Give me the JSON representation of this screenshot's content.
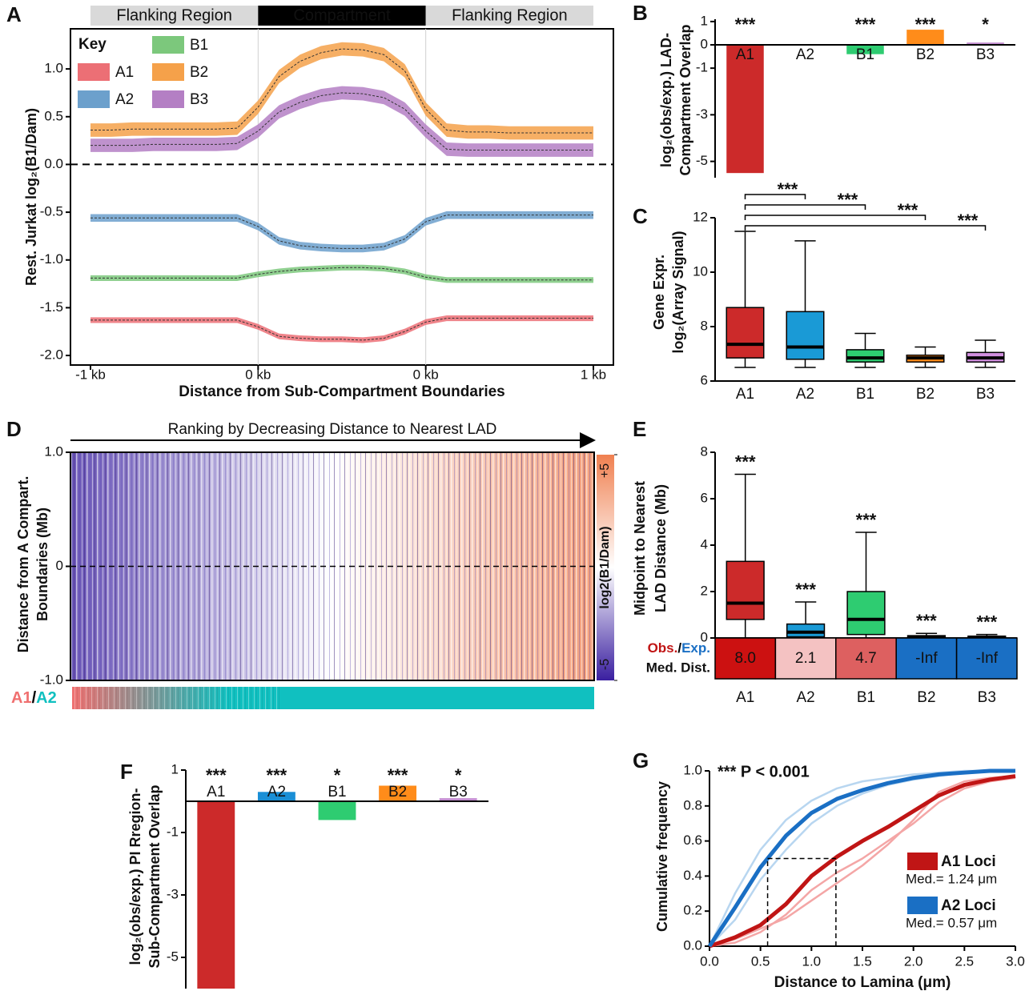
{
  "chart_data": [
    {
      "panel": "A",
      "type": "line",
      "header": [
        "Flanking Region",
        "Compartment",
        "Flanking Region"
      ],
      "legend_title": "Key",
      "xlabel": "Distance from Sub-Compartment Boundaries",
      "ylabel": "Rest. Jurkat log₂(B1/Dam)",
      "x": [
        0,
        0.125,
        0.25,
        0.375,
        0.5,
        0.625,
        0.75,
        0.875,
        1,
        1.125,
        1.25,
        1.375,
        1.5,
        1.625,
        1.75,
        1.875,
        2,
        2.125,
        2.25,
        2.375,
        2.5,
        2.625,
        2.75,
        2.875,
        3
      ],
      "xlim": [
        0,
        3
      ],
      "xticks": [
        {
          "value": 0,
          "label": "-1 kb"
        },
        {
          "value": 1,
          "label": "0 kb"
        },
        {
          "value": 2,
          "label": "0 kb"
        },
        {
          "value": 3,
          "label": "1 kb"
        }
      ],
      "ylim": [
        -2.1,
        1.42
      ],
      "yticks": [
        {
          "value": -2,
          "label": "-2.0"
        },
        -1.5,
        {
          "value": -1,
          "label": "-1.0"
        },
        -0.5,
        {
          "value": 0,
          "label": "0.0"
        },
        0.5,
        {
          "value": 1,
          "label": "1.0"
        }
      ],
      "hline": 0,
      "vlines": [
        1,
        2
      ],
      "series": [
        {
          "name": "A1",
          "color": "#ec6f75",
          "error": 0.03,
          "values": [
            -1.63,
            -1.63,
            -1.63,
            -1.63,
            -1.63,
            -1.63,
            -1.63,
            -1.63,
            -1.7,
            -1.8,
            -1.82,
            -1.83,
            -1.83,
            -1.84,
            -1.82,
            -1.75,
            -1.65,
            -1.61,
            -1.61,
            -1.61,
            -1.61,
            -1.61,
            -1.61,
            -1.61,
            -1.61
          ]
        },
        {
          "name": "A2",
          "color": "#6ca0cc",
          "error": 0.04,
          "values": [
            -0.56,
            -0.56,
            -0.56,
            -0.56,
            -0.56,
            -0.56,
            -0.56,
            -0.56,
            -0.65,
            -0.8,
            -0.85,
            -0.87,
            -0.88,
            -0.88,
            -0.86,
            -0.78,
            -0.6,
            -0.53,
            -0.53,
            -0.53,
            -0.53,
            -0.53,
            -0.53,
            -0.53,
            -0.53
          ]
        },
        {
          "name": "B1",
          "color": "#7cc87c",
          "error": 0.03,
          "values": [
            -1.19,
            -1.19,
            -1.19,
            -1.19,
            -1.19,
            -1.19,
            -1.19,
            -1.19,
            -1.15,
            -1.12,
            -1.1,
            -1.09,
            -1.08,
            -1.08,
            -1.09,
            -1.12,
            -1.18,
            -1.21,
            -1.21,
            -1.21,
            -1.21,
            -1.21,
            -1.21,
            -1.21,
            -1.21
          ]
        },
        {
          "name": "B2",
          "color": "#f5a14a",
          "error": 0.07,
          "values": [
            0.36,
            0.36,
            0.37,
            0.37,
            0.37,
            0.37,
            0.37,
            0.38,
            0.6,
            0.92,
            1.08,
            1.17,
            1.21,
            1.2,
            1.15,
            0.98,
            0.58,
            0.36,
            0.34,
            0.34,
            0.33,
            0.33,
            0.33,
            0.33,
            0.33
          ]
        },
        {
          "name": "B3",
          "color": "#b47fc4",
          "error": 0.07,
          "values": [
            0.2,
            0.2,
            0.2,
            0.21,
            0.21,
            0.21,
            0.21,
            0.22,
            0.35,
            0.55,
            0.65,
            0.72,
            0.75,
            0.74,
            0.7,
            0.58,
            0.35,
            0.16,
            0.15,
            0.15,
            0.15,
            0.15,
            0.15,
            0.15,
            0.15
          ]
        }
      ]
    },
    {
      "panel": "B",
      "type": "bar",
      "ylabel": [
        "log₂(obs/exp.) LAD-",
        "Compartment Overlap"
      ],
      "categories": [
        "A1",
        "A2",
        "B1",
        "B2",
        "B3"
      ],
      "values": [
        -5.5,
        0,
        -0.4,
        0.65,
        0.1
      ],
      "colors": [
        "#cc2a2a",
        "#1a8fd6",
        "#2ecc71",
        "#ff8c1a",
        "#c48fd1"
      ],
      "annotations": [
        "***",
        null,
        "***",
        "***",
        "*"
      ],
      "ylim": [
        -5.7,
        1.1
      ],
      "yticks": [
        1,
        0,
        -1,
        -3,
        -5
      ]
    },
    {
      "panel": "C",
      "type": "box",
      "ylabel": [
        "Gene Expr.",
        "log₂(Array Signal)"
      ],
      "categories": [
        "A1",
        "A2",
        "B1",
        "B2",
        "B3"
      ],
      "boxes": [
        {
          "whislo": 6.5,
          "q1": 6.85,
          "med": 7.35,
          "q3": 8.7,
          "whishi": 11.5
        },
        {
          "whislo": 6.5,
          "q1": 6.8,
          "med": 7.25,
          "q3": 8.55,
          "whishi": 11.15
        },
        {
          "whislo": 6.5,
          "q1": 6.7,
          "med": 6.85,
          "q3": 7.15,
          "whishi": 7.75
        },
        {
          "whislo": 6.5,
          "q1": 6.7,
          "med": 6.85,
          "q3": 6.95,
          "whishi": 7.25
        },
        {
          "whislo": 6.5,
          "q1": 6.7,
          "med": 6.85,
          "q3": 7.05,
          "whishi": 7.5
        }
      ],
      "colors": [
        "#cc2a2a",
        "#1a9ad6",
        "#2ecc71",
        "#ff8c1a",
        "#d28fe0"
      ],
      "comparisons": [
        null,
        "***",
        "***",
        "***",
        "***"
      ],
      "ylim": [
        6,
        12
      ],
      "yticks": [
        6,
        8,
        10,
        12
      ]
    },
    {
      "panel": "D",
      "type": "heatmap",
      "title": "Ranking by Decreasing Distance to Nearest LAD",
      "ylabel": [
        "Distance from A Compart.",
        "Boundaries (Mb)"
      ],
      "ylim": [
        -1,
        1
      ],
      "yticks": [
        {
          "value": 1,
          "label": "1.0"
        },
        0,
        {
          "value": -1,
          "label": "-1.0"
        }
      ],
      "hline": 0,
      "colorbar": {
        "label": "log2(B1/Dam)",
        "lim": [
          -5,
          5
        ],
        "ticks": [
          {
            "value": 5,
            "label": "+5"
          },
          {
            "value": -5,
            "label": "-5"
          }
        ],
        "colors": [
          "#3a1fa0",
          "#ffffff",
          "#f08050"
        ]
      },
      "track_labels": [
        {
          "text": "A1",
          "color": "#f07070"
        },
        {
          "text": "/",
          "color": "#000000"
        },
        {
          "text": "A2",
          "color": "#10c0c0"
        }
      ]
    },
    {
      "panel": "E",
      "type": "box",
      "ylabel": [
        "Midpoint to Nearest",
        "LAD Distance (Mb)"
      ],
      "categories": [
        "A1",
        "A2",
        "B1",
        "B2",
        "B3"
      ],
      "boxes": [
        {
          "whislo": 0,
          "q1": 0.8,
          "med": 1.5,
          "q3": 3.3,
          "whishi": 7.05
        },
        {
          "whislo": 0,
          "q1": 0.05,
          "med": 0.25,
          "q3": 0.6,
          "whishi": 1.55
        },
        {
          "whislo": 0,
          "q1": 0.15,
          "med": 0.8,
          "q3": 2.0,
          "whishi": 4.55
        },
        {
          "whislo": 0,
          "q1": 0,
          "med": 0.05,
          "q3": 0.1,
          "whishi": 0.2
        },
        {
          "whislo": 0,
          "q1": 0,
          "med": 0.03,
          "q3": 0.08,
          "whishi": 0.15
        }
      ],
      "colors": [
        "#cc2a2a",
        "#1a9ad6",
        "#2ecc71",
        "#ff8c1a",
        "#c48fd1"
      ],
      "annotations": [
        "***",
        "***",
        "***",
        "***",
        "***"
      ],
      "ylim": [
        0,
        8
      ],
      "yticks": [
        0,
        2,
        4,
        6,
        8
      ],
      "table": {
        "row_label": [
          {
            "text": "Obs.",
            "color": "#c01515"
          },
          {
            "text": "/",
            "color": "#000000"
          },
          {
            "text": "Exp.",
            "color": "#1a6fc4"
          }
        ],
        "row_label2": "Med. Dist.",
        "cells": [
          "8.0",
          "2.1",
          "4.7",
          "-Inf",
          "-Inf"
        ],
        "cell_colors": [
          "#cc1111",
          "#f4c2c2",
          "#dd6060",
          "#1a6fc4",
          "#1a6fc4"
        ]
      }
    },
    {
      "panel": "F",
      "type": "bar",
      "ylabel": [
        "log₂(obs/exp.) PI Rregion-",
        "Sub-Compartment Overlap"
      ],
      "categories": [
        "A1",
        "A2",
        "B1",
        "B2",
        "B3"
      ],
      "values": [
        -6,
        0.3,
        -0.6,
        0.5,
        0.1
      ],
      "colors": [
        "#cc2a2a",
        "#1a8fd6",
        "#2ecc71",
        "#ff8c1a",
        "#c48fd1"
      ],
      "annotations": [
        "***",
        "***",
        "*",
        "***",
        "*"
      ],
      "ylim": [
        -6,
        1
      ],
      "yticks": [
        1,
        -1,
        -3,
        -5
      ]
    },
    {
      "panel": "G",
      "type": "line",
      "annotation": "*** P < 0.001",
      "xlabel": "Distance to Lamina (μm)",
      "ylabel": "Cumulative frequency",
      "x": [
        0,
        0.25,
        0.5,
        0.75,
        1,
        1.25,
        1.5,
        1.75,
        2,
        2.25,
        2.5,
        2.75,
        3
      ],
      "xlim": [
        0,
        3
      ],
      "xticks": [
        {
          "value": 0,
          "label": "0.0"
        },
        0.5,
        {
          "value": 1,
          "label": "1.0"
        },
        1.5,
        {
          "value": 2,
          "label": "2.0"
        },
        2.5,
        {
          "value": 3,
          "label": "3.0"
        }
      ],
      "ylim": [
        0,
        1
      ],
      "yticks": [
        {
          "value": 0,
          "label": "0.0"
        },
        0.2,
        0.4,
        0.6,
        0.8,
        {
          "value": 1,
          "label": "1.0"
        }
      ],
      "median_level": 0.5,
      "series": [
        {
          "name": "A1 Loci",
          "color": "#c01515",
          "median": 1.24,
          "median_label": "Med.= 1.24 μm",
          "values": [
            0,
            0.05,
            0.12,
            0.24,
            0.4,
            0.51,
            0.6,
            0.68,
            0.77,
            0.86,
            0.92,
            0.95,
            0.97
          ]
        },
        {
          "name": "A2 Loci",
          "color": "#1a6fc4",
          "median": 0.57,
          "median_label": "Med.= 0.57 μm",
          "values": [
            0,
            0.22,
            0.45,
            0.63,
            0.76,
            0.84,
            0.89,
            0.93,
            0.96,
            0.98,
            0.99,
            1,
            1
          ]
        },
        {
          "color": "#f4a6a6",
          "values": [
            0,
            0.02,
            0.08,
            0.18,
            0.32,
            0.42,
            0.5,
            0.6,
            0.7,
            0.82,
            0.9,
            0.94,
            0.96
          ]
        },
        {
          "color": "#f4a6a6",
          "values": [
            0,
            0.04,
            0.1,
            0.16,
            0.26,
            0.36,
            0.46,
            0.58,
            0.72,
            0.88,
            0.94,
            0.96,
            0.97
          ]
        },
        {
          "color": "#b8d6f0",
          "values": [
            0,
            0.3,
            0.55,
            0.72,
            0.83,
            0.9,
            0.94,
            0.96,
            0.98,
            0.99,
            1,
            1,
            1
          ]
        },
        {
          "color": "#b8d6f0",
          "values": [
            0,
            0.15,
            0.38,
            0.55,
            0.7,
            0.8,
            0.87,
            0.92,
            0.95,
            0.97,
            0.99,
            1,
            1
          ]
        }
      ]
    }
  ]
}
